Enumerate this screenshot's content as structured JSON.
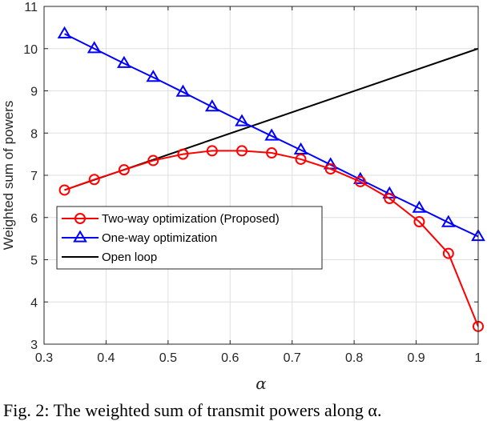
{
  "chart_data": {
    "type": "line",
    "xlabel": "α",
    "ylabel": "Weighted sum of powers",
    "xlim": [
      0.3,
      1.0
    ],
    "ylim": [
      3,
      11
    ],
    "xticks": [
      "0.3",
      "0.4",
      "0.5",
      "0.6",
      "0.7",
      "0.8",
      "0.9",
      "1"
    ],
    "yticks": [
      "3",
      "4",
      "5",
      "6",
      "7",
      "8",
      "9",
      "10",
      "11"
    ],
    "grid": true,
    "legend_position": "lower-left",
    "series": [
      {
        "name": "Two-way optimization (Proposed)",
        "color": "#ff0000",
        "marker": "circle",
        "x": [
          0.333,
          0.381,
          0.429,
          0.476,
          0.524,
          0.571,
          0.619,
          0.667,
          0.714,
          0.762,
          0.81,
          0.857,
          0.905,
          0.952,
          1.0
        ],
        "y": [
          6.65,
          6.9,
          7.13,
          7.35,
          7.5,
          7.58,
          7.58,
          7.53,
          7.38,
          7.15,
          6.85,
          6.45,
          5.9,
          5.15,
          3.42
        ]
      },
      {
        "name": "One-way optimization",
        "color": "#0000ff",
        "marker": "triangle",
        "x": [
          0.333,
          0.381,
          0.429,
          0.476,
          0.524,
          0.571,
          0.619,
          0.667,
          0.714,
          0.762,
          0.81,
          0.857,
          0.905,
          0.952,
          1.0
        ],
        "y": [
          10.35,
          10.0,
          9.65,
          9.32,
          8.97,
          8.62,
          8.27,
          7.93,
          7.6,
          7.25,
          6.9,
          6.56,
          6.22,
          5.88,
          5.55
        ]
      },
      {
        "name": "Open loop",
        "color": "#000000",
        "marker": "none",
        "x": [
          0.333,
          1.0
        ],
        "y": [
          6.65,
          10.0
        ]
      }
    ]
  },
  "caption": "Fig. 2: The weighted sum of transmit powers along α."
}
